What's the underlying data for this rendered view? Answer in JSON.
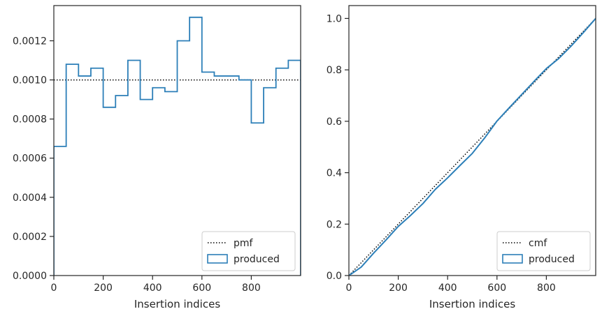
{
  "chart_data": [
    {
      "type": "line",
      "name": "left-panel",
      "xlabel": "Insertion indices",
      "ylabel": "",
      "xlim": [
        0,
        1000
      ],
      "ylim": [
        0,
        0.00138
      ],
      "xticks": [
        0,
        200,
        400,
        600,
        800
      ],
      "xtick_labels": [
        "0",
        "200",
        "400",
        "600",
        "800"
      ],
      "yticks": [
        0,
        0.0002,
        0.0004,
        0.0006,
        0.0008,
        0.001,
        0.0012
      ],
      "ytick_labels": [
        "0.0000",
        "0.0002",
        "0.0004",
        "0.0006",
        "0.0008",
        "0.0010",
        "0.0012"
      ],
      "grid": false,
      "legend_position": "bottom-right",
      "series": [
        {
          "name": "pmf",
          "style": "dotted",
          "color": "#000000",
          "x": [
            0,
            1000
          ],
          "y": [
            0.001,
            0.001
          ]
        },
        {
          "name": "produced",
          "style": "step-histogram",
          "color": "#2c7fb8",
          "bin_edges": [
            0,
            50,
            100,
            150,
            200,
            250,
            300,
            350,
            400,
            450,
            500,
            550,
            600,
            650,
            700,
            750,
            800,
            850,
            900,
            950,
            1000
          ],
          "values": [
            0.00066,
            0.00108,
            0.00102,
            0.00106,
            0.00086,
            0.00092,
            0.0011,
            0.0009,
            0.00096,
            0.00094,
            0.0012,
            0.00132,
            0.00104,
            0.00102,
            0.00102,
            0.001,
            0.00078,
            0.00096,
            0.00106,
            0.0011
          ]
        }
      ]
    },
    {
      "type": "line",
      "name": "right-panel",
      "xlabel": "Insertion indices",
      "ylabel": "",
      "xlim": [
        0,
        1000
      ],
      "ylim": [
        0,
        1.05
      ],
      "xticks": [
        0,
        200,
        400,
        600,
        800
      ],
      "xtick_labels": [
        "0",
        "200",
        "400",
        "600",
        "800"
      ],
      "yticks": [
        0,
        0.2,
        0.4,
        0.6,
        0.8,
        1.0
      ],
      "ytick_labels": [
        "0.0",
        "0.2",
        "0.4",
        "0.6",
        "0.8",
        "1.0"
      ],
      "grid": false,
      "legend_position": "bottom-right",
      "series": [
        {
          "name": "cmf",
          "style": "dotted",
          "color": "#000000",
          "x": [
            0,
            1000
          ],
          "y": [
            0,
            1.0
          ]
        },
        {
          "name": "produced",
          "style": "solid",
          "color": "#2c7fb8",
          "x": [
            0,
            50,
            100,
            150,
            200,
            250,
            300,
            350,
            400,
            450,
            500,
            550,
            600,
            650,
            700,
            750,
            800,
            850,
            900,
            950,
            1000
          ],
          "y": [
            0,
            0.033,
            0.087,
            0.138,
            0.191,
            0.234,
            0.28,
            0.335,
            0.38,
            0.428,
            0.475,
            0.535,
            0.601,
            0.653,
            0.704,
            0.755,
            0.805,
            0.844,
            0.892,
            0.945,
            1.0
          ]
        }
      ]
    }
  ],
  "colors": {
    "produced": "#2c7fb8",
    "reference": "#000000",
    "axes": "#262626"
  }
}
